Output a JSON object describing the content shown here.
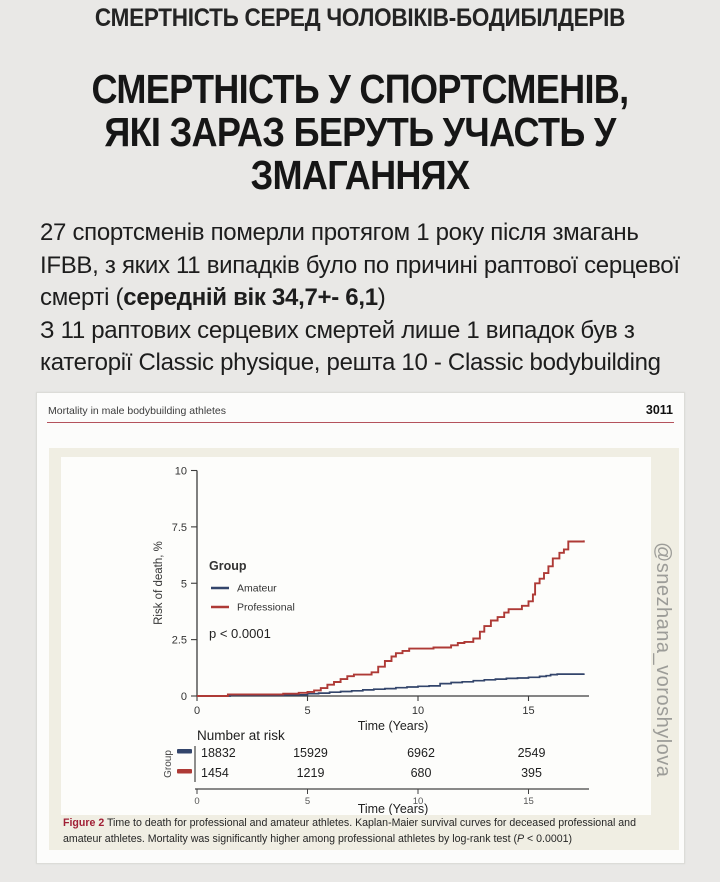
{
  "page": {
    "eyebrow": "СМЕРТНІСТЬ СЕРЕД ЧОЛОВІКІВ-БОДИБІЛДЕРІВ",
    "title_lines": [
      "СМЕРТНІСТЬ У СПОРТСМЕНІВ,",
      "ЯКІ ЗАРАЗ БЕРУТЬ УЧАСТЬ У",
      "ЗМАГАННЯХ"
    ],
    "body": {
      "seg1": "27 спортсменів померли протягом 1 року після змагань IFBB, з яких 11 випадків було по причині раптової серцевої смерті (",
      "seg_bold": "середній вік 34,7+- 6,1",
      "seg2": ")",
      "line2": "З 11 раптових серцевих смертей лише 1 випадок був з категорії Classic physique, решта 10 - Classic bodybuilding"
    },
    "watermark": "@snezhana_voroshylova"
  },
  "paper": {
    "running_title": "Mortality in male bodybuilding athletes",
    "page_number": "3011",
    "caption": {
      "label": "Figure 2",
      "text_before_p": " Time to death for professional and amateur athletes. Kaplan-Maier survival curves for deceased professional and amateur athletes. Mortality was significantly higher among professional athletes by log-rank test (",
      "p_italic": "P",
      "text_after_p": " < 0.0001)"
    }
  },
  "chart_data": {
    "type": "line",
    "subtype": "kaplan-meier-step",
    "xlabel": "Time (Years)",
    "ylabel": "Risk of death, %",
    "xlim": [
      0,
      17.5
    ],
    "ylim": [
      0,
      10
    ],
    "xticks": [
      0,
      5,
      10,
      15
    ],
    "yticks": [
      0,
      2.5,
      5,
      7.5,
      10
    ],
    "legend_title": "Group",
    "legend_position": "upper-left-inside",
    "annotation": "p < 0.0001",
    "grid": false,
    "colors": {
      "amateur": "#33456b",
      "professional": "#ae3a36",
      "axis": "#3c3c3c"
    },
    "series": [
      {
        "name": "Amateur",
        "color": "#33456b",
        "step": true,
        "points": [
          [
            0,
            0
          ],
          [
            1.5,
            0.03
          ],
          [
            4.0,
            0.05
          ],
          [
            5.0,
            0.1
          ],
          [
            5.5,
            0.13
          ],
          [
            6.0,
            0.17
          ],
          [
            6.5,
            0.2
          ],
          [
            7.0,
            0.23
          ],
          [
            7.5,
            0.27
          ],
          [
            8.0,
            0.3
          ],
          [
            8.5,
            0.33
          ],
          [
            9.0,
            0.37
          ],
          [
            9.5,
            0.4
          ],
          [
            10.0,
            0.43
          ],
          [
            10.5,
            0.45
          ],
          [
            11.0,
            0.55
          ],
          [
            11.5,
            0.6
          ],
          [
            12.0,
            0.63
          ],
          [
            12.5,
            0.68
          ],
          [
            13.0,
            0.72
          ],
          [
            13.5,
            0.75
          ],
          [
            14.0,
            0.78
          ],
          [
            14.5,
            0.8
          ],
          [
            15.0,
            0.83
          ],
          [
            15.5,
            0.87
          ],
          [
            15.8,
            0.9
          ],
          [
            16.0,
            0.95
          ],
          [
            16.3,
            0.97
          ],
          [
            17.5,
            1.0
          ]
        ]
      },
      {
        "name": "Professional",
        "color": "#ae3a36",
        "step": true,
        "points": [
          [
            0,
            0
          ],
          [
            1.4,
            0.07
          ],
          [
            3.9,
            0.1
          ],
          [
            4.6,
            0.14
          ],
          [
            5.0,
            0.18
          ],
          [
            5.3,
            0.25
          ],
          [
            5.6,
            0.35
          ],
          [
            5.9,
            0.5
          ],
          [
            6.2,
            0.62
          ],
          [
            6.5,
            0.75
          ],
          [
            6.8,
            0.88
          ],
          [
            7.1,
            0.95
          ],
          [
            7.9,
            1.05
          ],
          [
            8.2,
            1.3
          ],
          [
            8.5,
            1.55
          ],
          [
            8.8,
            1.75
          ],
          [
            9.0,
            1.9
          ],
          [
            9.3,
            2.0
          ],
          [
            9.6,
            2.1
          ],
          [
            10.7,
            2.15
          ],
          [
            11.5,
            2.25
          ],
          [
            11.8,
            2.35
          ],
          [
            12.1,
            2.4
          ],
          [
            12.5,
            2.55
          ],
          [
            12.8,
            2.85
          ],
          [
            13.0,
            3.1
          ],
          [
            13.3,
            3.35
          ],
          [
            13.6,
            3.5
          ],
          [
            13.9,
            3.7
          ],
          [
            14.1,
            3.85
          ],
          [
            14.7,
            4.0
          ],
          [
            15.0,
            4.2
          ],
          [
            15.2,
            4.5
          ],
          [
            15.3,
            5.0
          ],
          [
            15.5,
            5.2
          ],
          [
            15.7,
            5.45
          ],
          [
            15.9,
            5.75
          ],
          [
            16.1,
            6.1
          ],
          [
            16.4,
            6.35
          ],
          [
            16.6,
            6.5
          ],
          [
            16.8,
            6.85
          ],
          [
            17.5,
            6.9
          ]
        ]
      }
    ],
    "number_at_risk": {
      "heading": "Number at risk",
      "group_label": "Group",
      "times": [
        0,
        5,
        10,
        15
      ],
      "rows": [
        {
          "name": "Amateur",
          "color": "#33456b",
          "values": [
            "18832",
            "15929",
            "6962",
            "2549"
          ]
        },
        {
          "name": "Professional",
          "color": "#ae3a36",
          "values": [
            "1454",
            "1219",
            "680",
            "395"
          ]
        }
      ],
      "xlabel": "Time (Years)"
    }
  }
}
